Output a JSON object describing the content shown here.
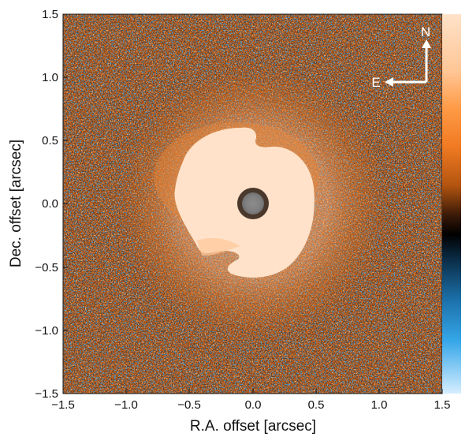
{
  "figure": {
    "xlabel": "R.A. offset [arcsec]",
    "ylabel": "Dec. offset [arcsec]",
    "x_ticks": [
      "−1.5",
      "−1.0",
      "−0.5",
      "0.0",
      "0.5",
      "1.0",
      "1.5"
    ],
    "y_ticks": [
      "1.5",
      "1.0",
      "0.5",
      "0.0",
      "−0.5",
      "−1.0",
      "−1.5"
    ],
    "x_range": [
      -1.5,
      1.5
    ],
    "y_range": [
      -1.5,
      1.5
    ],
    "compass": {
      "north": "N",
      "east": "E"
    },
    "colors": {
      "background_orange": "#c8601a",
      "disk_core": "#ffe3cc",
      "noise_blue": "#2f8fd0",
      "noise_dark": "#1a1a1a",
      "coronagraph_mask": "#8a8a8a"
    },
    "colorbar_stops": [
      "#ffffff",
      "#ffe5d0",
      "#ff9a45",
      "#f07a22",
      "#b45510",
      "#3a1a08",
      "#000000",
      "#0b2f4a",
      "#1b6fa8",
      "#35a6e8",
      "#cfe9ff"
    ]
  }
}
